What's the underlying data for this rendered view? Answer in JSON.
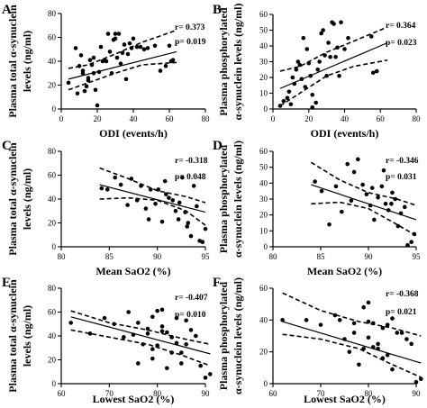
{
  "chart_data": [
    {
      "panel": "A",
      "type": "scatter",
      "xlabel": "ODI (events/h)",
      "ylabel": [
        "Plasma total α-synuclein",
        "levels (ng/ml)"
      ],
      "xlim": [
        0,
        80
      ],
      "ylim": [
        0,
        80
      ],
      "xticks": [
        0,
        20,
        40,
        60,
        80
      ],
      "yticks": [
        0,
        20,
        40,
        60,
        80
      ],
      "r": "r= 0.373",
      "p": "p= 0.019",
      "x": [
        4,
        8,
        9,
        10,
        11,
        12,
        12,
        13,
        14,
        15,
        15,
        16,
        17,
        18,
        18,
        19,
        20,
        21,
        22,
        23,
        24,
        25,
        26,
        27,
        28,
        29,
        30,
        30,
        31,
        32,
        33,
        34,
        35,
        36,
        37,
        38,
        39,
        40,
        42,
        44,
        46,
        48,
        52,
        55,
        58,
        60,
        61,
        62
      ],
      "y": [
        22,
        51,
        13,
        36,
        45,
        30,
        32,
        15,
        19,
        26,
        24,
        41,
        37,
        43,
        30,
        16,
        3,
        31,
        52,
        40,
        41,
        40,
        63,
        48,
        30,
        58,
        63,
        59,
        43,
        63,
        38,
        47,
        54,
        25,
        46,
        55,
        51,
        59,
        52,
        52,
        50,
        51,
        53,
        32,
        36,
        53,
        40,
        41
      ],
      "fit": {
        "x": [
          4,
          64
        ],
        "y": [
          25,
          48
        ]
      },
      "ci_upper": {
        "x": [
          4,
          15,
          30,
          45,
          64
        ],
        "y": [
          34,
          37,
          46,
          56,
          66
        ]
      },
      "ci_lower": {
        "x": [
          4,
          15,
          30,
          45,
          64
        ],
        "y": [
          16,
          22,
          30,
          37,
          39
        ]
      }
    },
    {
      "panel": "B",
      "type": "scatter",
      "xlabel": "ODI (events/h)",
      "ylabel": [
        "Plasma phosphorylated",
        "α-synuclein levels (ng/ml)"
      ],
      "xlim": [
        0,
        80
      ],
      "ylim": [
        0,
        60
      ],
      "xticks": [
        0,
        20,
        40,
        60,
        80
      ],
      "yticks": [
        0,
        10,
        20,
        30,
        40,
        50,
        60
      ],
      "r": "r= 0.364",
      "p": "p= 0.023",
      "x": [
        4,
        6,
        8,
        9,
        10,
        11,
        12,
        13,
        14,
        15,
        16,
        17,
        18,
        19,
        20,
        21,
        22,
        22,
        24,
        25,
        26,
        27,
        28,
        29,
        30,
        31,
        32,
        33,
        34,
        35,
        36,
        37,
        38,
        40,
        42,
        55,
        56,
        58
      ],
      "y": [
        2,
        5,
        7,
        11,
        3,
        20,
        16,
        25,
        30,
        28,
        19,
        45,
        14,
        38,
        29,
        21,
        9,
        1,
        4,
        25,
        30,
        48,
        50,
        34,
        21,
        42,
        33,
        55,
        54,
        33,
        39,
        21,
        55,
        38,
        45,
        46,
        23,
        24
      ],
      "fit": {
        "x": [
          4,
          64
        ],
        "y": [
          13,
          42
        ]
      },
      "ci_upper": {
        "x": [
          4,
          15,
          30,
          45,
          64
        ],
        "y": [
          24,
          27,
          36,
          43,
          52
        ]
      },
      "ci_lower": {
        "x": [
          4,
          15,
          30,
          45,
          64
        ],
        "y": [
          2,
          10,
          21,
          27,
          31
        ]
      }
    },
    {
      "panel": "C",
      "type": "scatter",
      "xlabel": "Mean SaO2 (%)",
      "ylabel": [
        "Plasma total α-synuclein",
        "levels (ng/ml)"
      ],
      "xlim": [
        80,
        95
      ],
      "ylim": [
        0,
        80
      ],
      "xticks": [
        80,
        85,
        90,
        95
      ],
      "yticks": [
        0,
        20,
        40,
        60,
        80
      ],
      "r": "r= -0.318",
      "p": "p= 0.048",
      "x": [
        84.2,
        84.8,
        85.6,
        86.2,
        86.9,
        87.3,
        87.9,
        88.3,
        88.8,
        89.3,
        89.8,
        90.1,
        90.5,
        90.8,
        91.2,
        91.6,
        91.9,
        92.3,
        92.6,
        92.9,
        93.2,
        93.5,
        93.8,
        94.1,
        94.4,
        94.7,
        95.0,
        89.1,
        90.9,
        92.2,
        93.1
      ],
      "y": [
        49,
        48,
        58,
        52,
        35,
        57,
        39,
        51,
        32,
        48,
        36,
        48,
        21,
        55,
        41,
        39,
        30,
        37,
        58,
        29,
        20,
        9,
        51,
        34,
        5,
        4,
        15,
        23,
        44,
        23,
        17
      ],
      "fit": {
        "x": [
          84,
          95
        ],
        "y": [
          52,
          29
        ]
      },
      "ci_upper": {
        "x": [
          84,
          87,
          90,
          93,
          95
        ],
        "y": [
          66,
          57,
          47,
          42,
          37
        ]
      },
      "ci_lower": {
        "x": [
          84,
          87,
          90,
          93,
          95
        ],
        "y": [
          40,
          41,
          39,
          30,
          18
        ]
      }
    },
    {
      "panel": "D",
      "type": "scatter",
      "xlabel": "Mean SaO2 (%)",
      "ylabel": [
        "Plasma phosphorylated",
        "α-synuclein levels (ng/ml)"
      ],
      "xlim": [
        80,
        95
      ],
      "ylim": [
        0,
        60
      ],
      "xticks": [
        80,
        85,
        90,
        95
      ],
      "yticks": [
        0,
        10,
        20,
        30,
        40,
        50,
        60
      ],
      "r": "r= -0.346",
      "p": "p= 0.031",
      "x": [
        84.4,
        85.1,
        85.9,
        86.6,
        87.2,
        87.8,
        88.2,
        88.9,
        89.4,
        89.8,
        90.2,
        90.6,
        91.0,
        91.4,
        91.8,
        92.1,
        92.5,
        92.8,
        93.1,
        93.4,
        93.8,
        94.1,
        94.5,
        94.8,
        88.5,
        90.4,
        91.6,
        92.4
      ],
      "y": [
        41,
        35,
        14,
        38,
        22,
        52,
        29,
        55,
        39,
        33,
        26,
        17,
        31,
        38,
        27,
        23,
        34,
        30,
        13,
        21,
        25,
        1,
        3,
        8,
        47,
        37,
        48,
        27
      ],
      "fit": {
        "x": [
          84,
          95
        ],
        "y": [
          39,
          17
        ]
      },
      "ci_upper": {
        "x": [
          84,
          87,
          90,
          93,
          95
        ],
        "y": [
          53,
          42,
          34,
          30,
          26
        ]
      },
      "ci_lower": {
        "x": [
          84,
          87,
          90,
          93,
          95
        ],
        "y": [
          27,
          28,
          24,
          14,
          7
        ]
      }
    },
    {
      "panel": "E",
      "type": "scatter",
      "xlabel": "Lowest SaO2 (%)",
      "ylabel": [
        "Plasma total α-synuclein",
        "levels (ng/ml)"
      ],
      "xlim": [
        60,
        90
      ],
      "ylim": [
        0,
        80
      ],
      "xticks": [
        60,
        70,
        80,
        90
      ],
      "yticks": [
        0,
        20,
        40,
        60,
        80
      ],
      "r": "r= -0.407",
      "p": "p= 0.010",
      "x": [
        62,
        66,
        69,
        71,
        73,
        74,
        75,
        76,
        77,
        78,
        78,
        79,
        79,
        80,
        80,
        81,
        81,
        82,
        82,
        83,
        83,
        84,
        84,
        85,
        86,
        86,
        87,
        88,
        89,
        90,
        91,
        76,
        79,
        81,
        83,
        85
      ],
      "y": [
        51,
        42,
        55,
        50,
        39,
        60,
        41,
        51,
        33,
        46,
        42,
        21,
        56,
        32,
        61,
        48,
        62,
        43,
        13,
        26,
        39,
        55,
        34,
        17,
        53,
        33,
        45,
        40,
        15,
        5,
        8,
        17,
        29,
        44,
        39,
        26
      ],
      "fit": {
        "x": [
          62,
          91
        ],
        "y": [
          56,
          25
        ]
      },
      "ci_upper": {
        "x": [
          62,
          70,
          78,
          85,
          91
        ],
        "y": [
          61,
          51,
          45,
          38,
          33
        ]
      },
      "ci_lower": {
        "x": [
          62,
          70,
          78,
          85,
          91
        ],
        "y": [
          45,
          39,
          33,
          24,
          15
        ]
      }
    },
    {
      "panel": "F",
      "type": "scatter",
      "xlabel": "Lowest SaO2 (%)",
      "ylabel": [
        "Plasma phosphorylated",
        "α-synuclein levels (ng/ml)"
      ],
      "xlim": [
        60,
        90
      ],
      "ylim": [
        0,
        60
      ],
      "xticks": [
        60,
        70,
        80,
        90
      ],
      "yticks": [
        0,
        20,
        40,
        60
      ],
      "r": "r= -0.368",
      "p": "p= 0.021",
      "x": [
        62,
        67,
        70,
        73,
        74,
        75,
        76,
        77,
        78,
        79,
        79,
        80,
        80,
        81,
        81,
        82,
        82,
        83,
        83,
        84,
        85,
        85,
        86,
        87,
        88,
        89,
        90,
        91,
        77,
        80,
        84
      ],
      "y": [
        40,
        40,
        37,
        43,
        40,
        28,
        20,
        32,
        12,
        22,
        48,
        39,
        51,
        23,
        38,
        25,
        22,
        35,
        16,
        18,
        9,
        41,
        32,
        32,
        28,
        25,
        1,
        3,
        38,
        29,
        37
      ],
      "fit": {
        "x": [
          62,
          91
        ],
        "y": [
          39,
          13
        ]
      },
      "ci_upper": {
        "x": [
          62,
          70,
          78,
          85,
          91
        ],
        "y": [
          57,
          46,
          39,
          35,
          30
        ]
      },
      "ci_lower": {
        "x": [
          62,
          70,
          78,
          85,
          91
        ],
        "y": [
          31,
          28,
          22,
          12,
          4
        ]
      }
    }
  ]
}
